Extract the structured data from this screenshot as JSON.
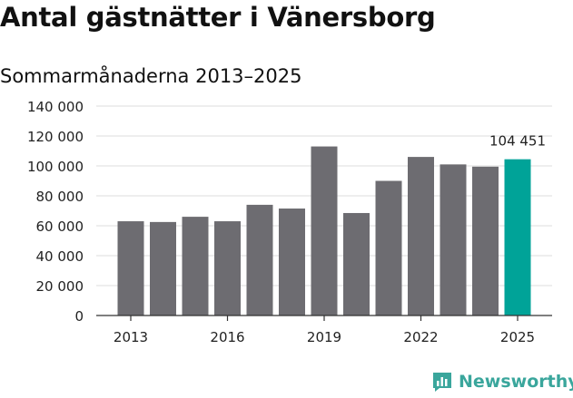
{
  "title": "Antal gästnätter i Vänersborg",
  "subtitle": "Sommarmånaderna 2013–2025",
  "brand": {
    "name": "Newsworthy",
    "icon": "bar-chart-logo-icon",
    "color": "#3aa69c"
  },
  "colors": {
    "bar": "#6d6c71",
    "highlight": "#00a398",
    "grid": "#dddddd",
    "axis": "#333333"
  },
  "chart_data": {
    "type": "bar",
    "title": "Antal gästnätter i Vänersborg",
    "subtitle": "Sommarmånaderna 2013–2025",
    "categories": [
      "2013",
      "2014",
      "2015",
      "2016",
      "2017",
      "2018",
      "2019",
      "2020",
      "2021",
      "2022",
      "2023",
      "2024",
      "2025"
    ],
    "values": [
      63000,
      62500,
      66000,
      63000,
      74000,
      71500,
      113000,
      68500,
      90000,
      106000,
      101000,
      99500,
      104451
    ],
    "x_tick_labels": [
      "2013",
      "2016",
      "2019",
      "2022",
      "2025"
    ],
    "y_ticks": [
      0,
      20000,
      40000,
      60000,
      80000,
      100000,
      120000,
      140000
    ],
    "y_tick_labels": [
      "0",
      "20 000",
      "40 000",
      "60 000",
      "80 000",
      "100 000",
      "120 000",
      "140 000"
    ],
    "ylim": [
      0,
      140000
    ],
    "highlight_index": 12,
    "highlight_label": "104 451",
    "grid": true,
    "legend": "none"
  }
}
